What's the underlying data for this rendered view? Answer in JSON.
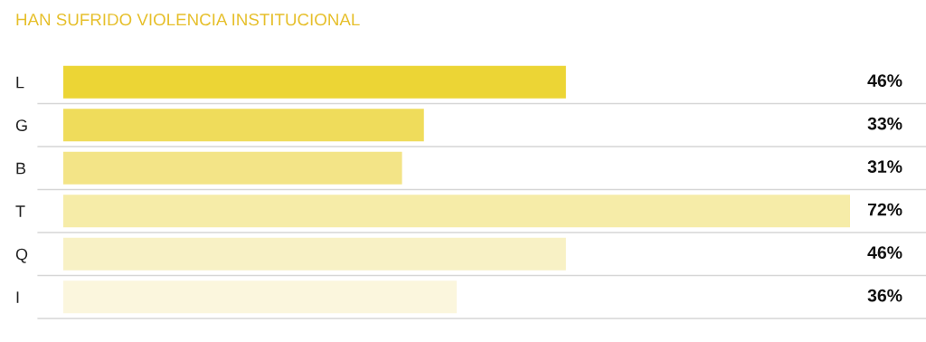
{
  "chart_data": {
    "type": "bar",
    "orientation": "horizontal",
    "title": "HAN SUFRIDO VIOLENCIA INSTITUCIONAL",
    "categories": [
      "L",
      "G",
      "B",
      "T",
      "Q",
      "I"
    ],
    "values": [
      46,
      33,
      31,
      72,
      46,
      36
    ],
    "value_labels": [
      "46%",
      "33%",
      "31%",
      "72%",
      "46%",
      "36%"
    ],
    "colors": [
      "#ecd535",
      "#efdc5b",
      "#f3e487",
      "#f6eca8",
      "#f8f1c5",
      "#fbf6dd"
    ],
    "grid": true
  }
}
